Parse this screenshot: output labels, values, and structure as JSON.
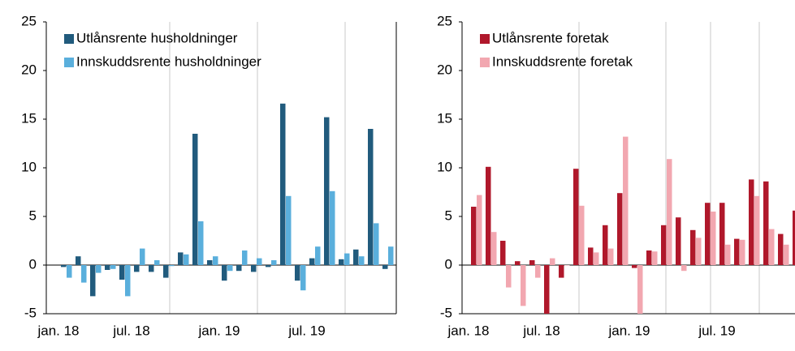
{
  "chart_data": [
    {
      "type": "bar",
      "legend": "top-left",
      "categories": [
        "jan. 18",
        null,
        null,
        null,
        null,
        "jul. 18",
        null,
        null,
        null,
        null,
        null,
        "jan. 19",
        null,
        null,
        null,
        null,
        null,
        "jul. 19",
        null,
        null,
        null,
        null,
        null
      ],
      "ylim": [
        -5,
        25
      ],
      "yticks": [
        -5,
        0,
        5,
        10,
        15,
        20,
        25
      ],
      "series": [
        {
          "name": "Utlånsrente husholdninger",
          "color": "#215b7d",
          "values": [
            -0.2,
            0.9,
            -3.2,
            -0.5,
            -1.5,
            -0.7,
            -0.7,
            -1.3,
            1.3,
            13.5,
            0.5,
            -1.6,
            -0.6,
            -0.7,
            -0.2,
            16.6,
            -1.6,
            0.7,
            15.2,
            0.6,
            1.6,
            14.0,
            -0.4
          ]
        },
        {
          "name": "Innskuddsrente husholdninger",
          "color": "#5aafdc",
          "values": [
            -1.3,
            -1.8,
            -0.8,
            -0.4,
            -3.2,
            1.7,
            0.5,
            -0.1,
            1.1,
            4.5,
            0.9,
            -0.6,
            1.5,
            0.7,
            0.5,
            7.1,
            -2.6,
            1.9,
            7.6,
            1.2,
            0.9,
            4.3,
            1.9
          ]
        }
      ]
    },
    {
      "type": "bar",
      "legend": "top-left",
      "categories": [
        "jan. 18",
        null,
        null,
        null,
        null,
        "jul. 18",
        null,
        null,
        null,
        null,
        null,
        "jan. 19",
        null,
        null,
        null,
        null,
        null,
        "jul. 19",
        null,
        null,
        null,
        null,
        null
      ],
      "ylim": [
        -5,
        25
      ],
      "yticks": [
        -5,
        0,
        5,
        10,
        15,
        20,
        25
      ],
      "series": [
        {
          "name": "Utlånsrente foretak",
          "color": "#b0182b",
          "values": [
            6.0,
            10.1,
            2.5,
            0.4,
            0.5,
            -5.5,
            -1.3,
            9.9,
            1.8,
            4.1,
            7.4,
            -0.3,
            1.5,
            4.1,
            4.9,
            3.6,
            6.4,
            6.4,
            2.7,
            8.8,
            8.6,
            3.2,
            5.6
          ]
        },
        {
          "name": "Innskuddsrente foretak",
          "color": "#f2a7b0",
          "values": [
            7.2,
            3.4,
            -2.3,
            -4.2,
            -1.3,
            0.7,
            0.0,
            6.1,
            1.3,
            1.7,
            13.2,
            -5.5,
            1.4,
            10.9,
            -0.6,
            2.8,
            5.5,
            2.1,
            2.6,
            7.1,
            3.7,
            2.1,
            null
          ]
        }
      ]
    }
  ]
}
